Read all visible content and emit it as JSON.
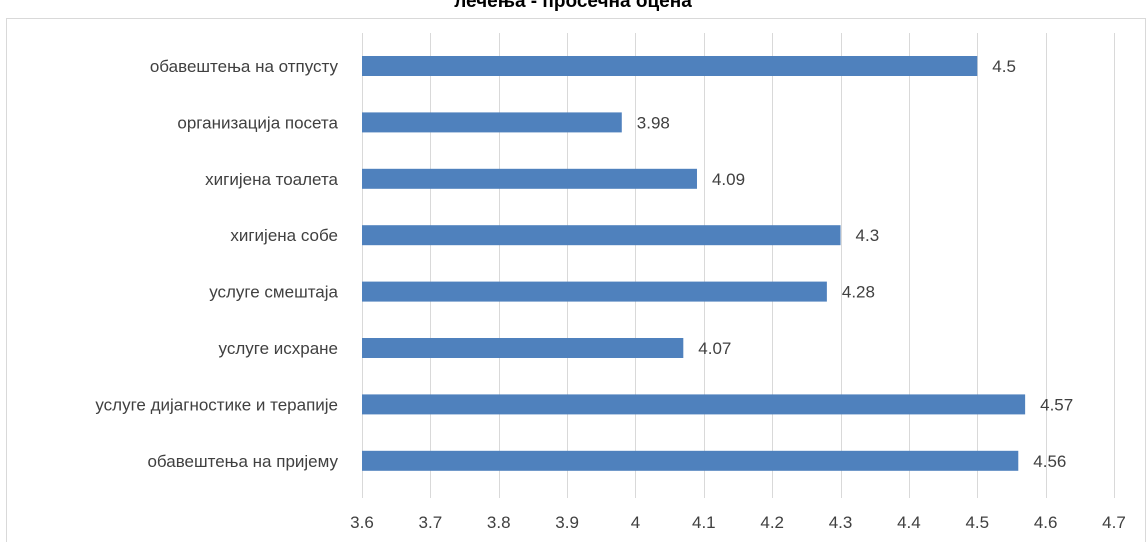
{
  "chart_data": {
    "type": "bar",
    "orientation": "horizontal",
    "title": "лечења - просечна оцена",
    "xlabel": "",
    "ylabel": "",
    "categories": [
      "обавештења на отпусту",
      "организација посета",
      "хигијена тоалета",
      "хигијена собе",
      "услуге смештаја",
      "услуге исхране",
      "услуге дијагностике и терапије",
      "обавештења на пријему"
    ],
    "values": [
      4.5,
      3.98,
      4.09,
      4.3,
      4.28,
      4.07,
      4.57,
      4.56
    ],
    "value_labels": [
      "4.5",
      "3.98",
      "4.09",
      "4.3",
      "4.28",
      "4.07",
      "4.57",
      "4.56"
    ],
    "xlim": [
      3.6,
      4.7
    ],
    "ticks": [
      "3.6",
      "3.7",
      "3.8",
      "3.9",
      "4",
      "4.1",
      "4.2",
      "4.3",
      "4.4",
      "4.5",
      "4.6",
      "4.7"
    ],
    "grid": "vertical",
    "legend": "none",
    "bar_color": "#4f81bd",
    "grid_color": "#d9d9d9",
    "border_color": "#d9d9d9"
  }
}
